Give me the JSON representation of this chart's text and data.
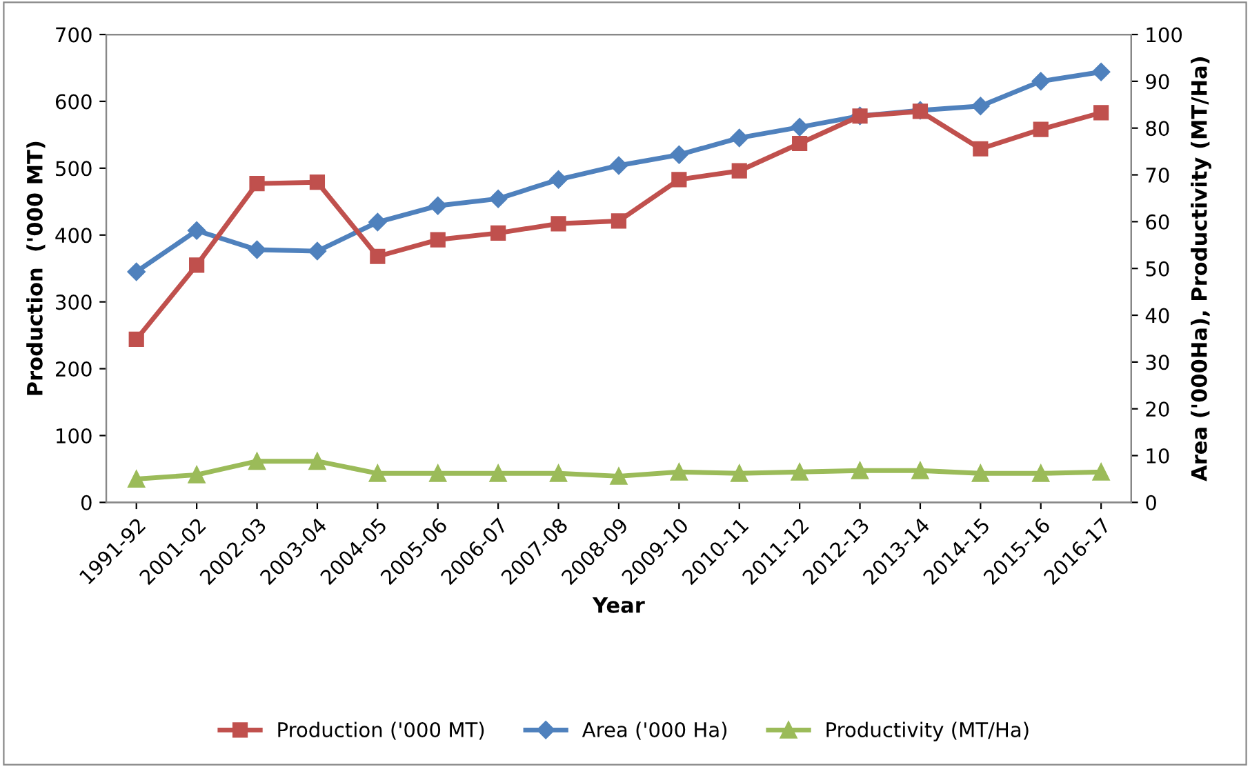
{
  "chart_data": {
    "type": "line",
    "xlabel": "Year",
    "ylabel": "Production  ('000 MT)",
    "y2label": "Area ('000Ha), Productivity (MT/Ha)",
    "categories": [
      "1991-92",
      "2001-02",
      "2002-03",
      "2003-04",
      "2004-05",
      "2005-06",
      "2006-07",
      "2007-08",
      "2008-09",
      "2009-10",
      "2010-11",
      "2011-12",
      "2012-13",
      "2013-14",
      "2014-15",
      "2015-16",
      "2016-17"
    ],
    "series": [
      {
        "name": "Production ('000 MT)",
        "color": "#c0504d",
        "marker": "square",
        "values": [
          244,
          355,
          477,
          479,
          368,
          393,
          403,
          417,
          421,
          483,
          496,
          537,
          578,
          585,
          529,
          558,
          583
        ]
      },
      {
        "name": "Area ('000 Ha)",
        "color": "#4f81bd",
        "marker": "diamond",
        "axis": "y2",
        "values": [
          49.3,
          58.1,
          54,
          53.7,
          59.9,
          63.4,
          64.9,
          69,
          72,
          74.3,
          77.9,
          80.2,
          82.6,
          83.8,
          84.7,
          90,
          92
        ]
      },
      {
        "name": "Productivity (MT/Ha)",
        "color": "#9bbb59",
        "marker": "triangle",
        "axis": "y2",
        "values": [
          5,
          5.9,
          8.8,
          8.8,
          6.2,
          6.2,
          6.2,
          6.2,
          5.6,
          6.5,
          6.2,
          6.5,
          6.8,
          6.8,
          6.2,
          6.2,
          6.5
        ]
      }
    ],
    "ylim": [
      0,
      700
    ],
    "yticks": [
      0,
      100,
      200,
      300,
      400,
      500,
      600,
      700
    ],
    "y2lim": [
      0,
      100
    ],
    "y2ticks": [
      0,
      10,
      20,
      30,
      40,
      50,
      60,
      70,
      80,
      90,
      100
    ],
    "grid": false,
    "legend": "bottom"
  }
}
